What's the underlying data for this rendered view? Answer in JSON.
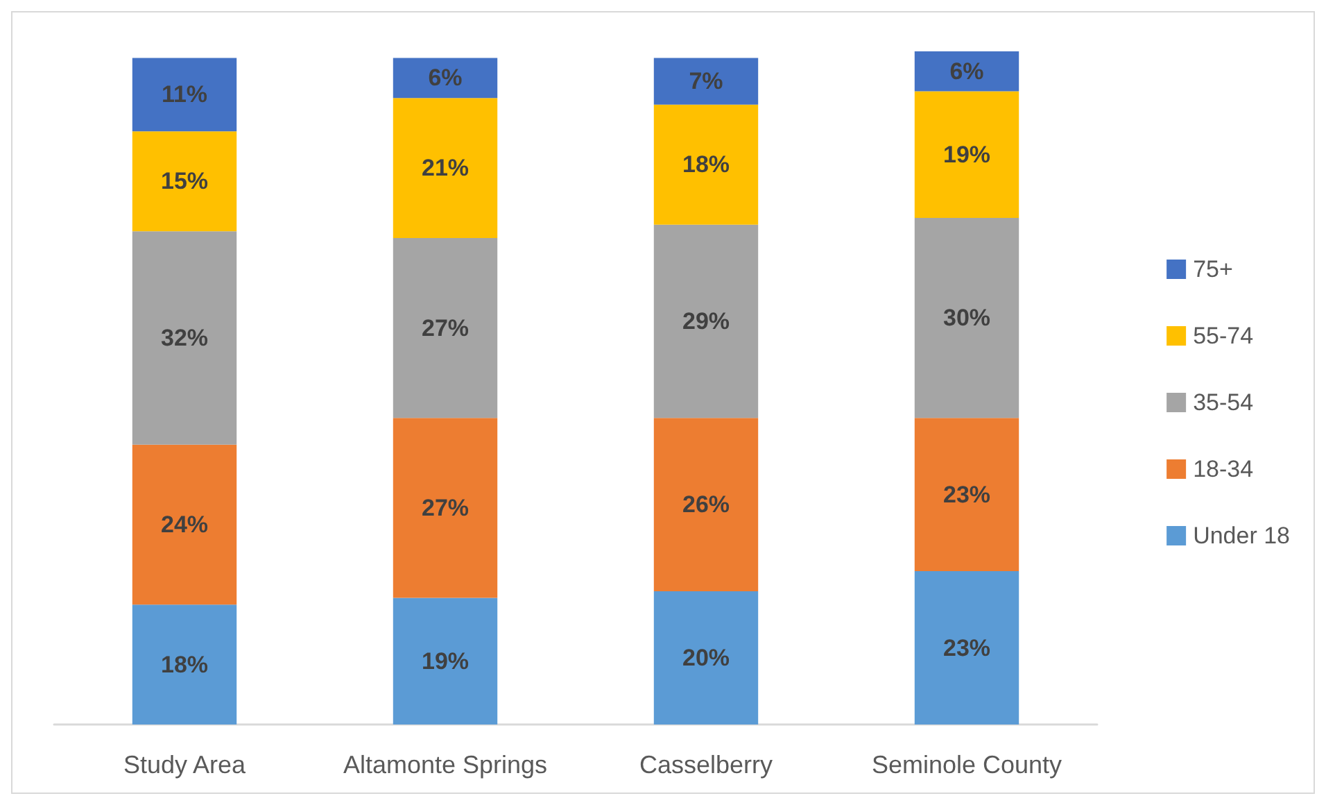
{
  "chart_data": {
    "type": "bar",
    "stacked": true,
    "categories": [
      "Study Area",
      "Altamonte Springs",
      "Casselberry",
      "Seminole County"
    ],
    "series": [
      {
        "name": "Under 18",
        "color": "#5b9bd5",
        "values": [
          18,
          19,
          20,
          23
        ],
        "value_labels": [
          "18%",
          "19%",
          "20%",
          "23%"
        ]
      },
      {
        "name": "18-34",
        "color": "#ed7d31",
        "values": [
          24,
          27,
          26,
          23
        ],
        "value_labels": [
          "24%",
          "27%",
          "26%",
          "23%"
        ]
      },
      {
        "name": "35-54",
        "color": "#a5a5a5",
        "values": [
          32,
          27,
          29,
          30
        ],
        "value_labels": [
          "32%",
          "27%",
          "29%",
          "30%"
        ]
      },
      {
        "name": "55-74",
        "color": "#ffc000",
        "values": [
          15,
          21,
          18,
          19
        ],
        "value_labels": [
          "15%",
          "21%",
          "18%",
          "19%"
        ]
      },
      {
        "name": "75+",
        "color": "#4472c4",
        "values": [
          11,
          6,
          7,
          6
        ],
        "value_labels": [
          "11%",
          "6%",
          "7%",
          "6%"
        ]
      }
    ],
    "legend": "right",
    "tick_labels": "x"
  }
}
